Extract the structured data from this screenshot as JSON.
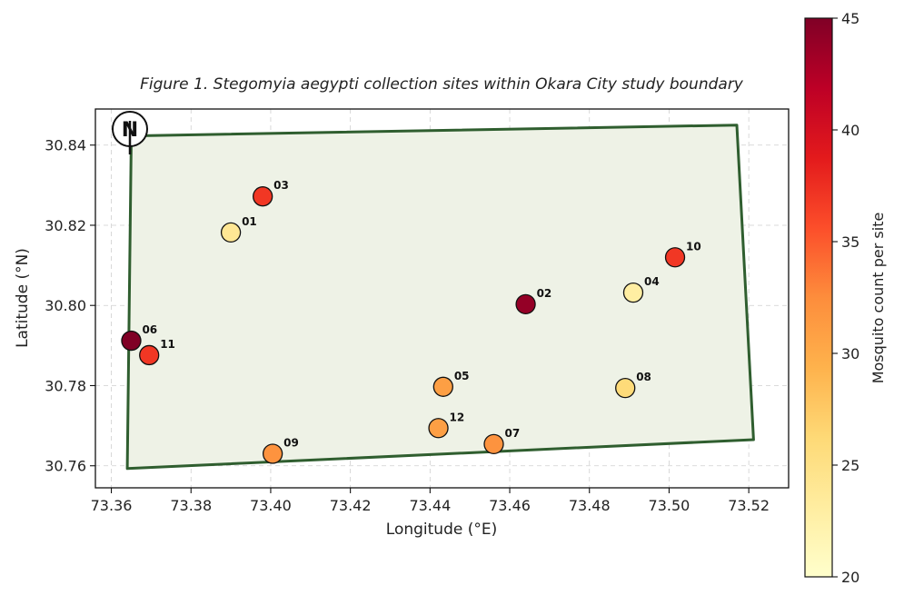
{
  "chart_data": {
    "type": "scatter",
    "title": "Figure 1. Stegomyia aegypti collection sites within Okara City study boundary",
    "xlabel": "Longitude (°E)",
    "ylabel": "Latitude (°N)",
    "xlim": [
      73.356,
      73.53
    ],
    "ylim": [
      30.7545,
      30.849
    ],
    "xticks": [
      "73.36",
      "73.38",
      "73.40",
      "73.42",
      "73.44",
      "73.46",
      "73.48",
      "73.50",
      "73.52"
    ],
    "yticks": [
      "30.76",
      "30.78",
      "30.80",
      "30.82",
      "30.84"
    ],
    "grid": true,
    "boundary_polygon": [
      {
        "lon": 73.365,
        "lat": 30.8423
      },
      {
        "lon": 73.517,
        "lat": 30.845
      },
      {
        "lon": 73.5212,
        "lat": 30.7665
      },
      {
        "lon": 73.364,
        "lat": 30.7593
      }
    ],
    "boundary_color": "#2f5e2f",
    "boundary_fill": "#eef2e6",
    "points": [
      {
        "label": "01",
        "lon": 73.39,
        "lat": 30.8182,
        "count": 24
      },
      {
        "label": "02",
        "lon": 73.464,
        "lat": 30.8003,
        "count": 44
      },
      {
        "label": "03",
        "lon": 73.398,
        "lat": 30.8272,
        "count": 37
      },
      {
        "label": "04",
        "lon": 73.491,
        "lat": 30.8032,
        "count": 23
      },
      {
        "label": "05",
        "lon": 73.4433,
        "lat": 30.7797,
        "count": 31
      },
      {
        "label": "06",
        "lon": 73.365,
        "lat": 30.7912,
        "count": 45
      },
      {
        "label": "07",
        "lon": 73.456,
        "lat": 30.7654,
        "count": 32
      },
      {
        "label": "08",
        "lon": 73.489,
        "lat": 30.7794,
        "count": 26
      },
      {
        "label": "09",
        "lon": 73.4005,
        "lat": 30.763,
        "count": 32
      },
      {
        "label": "10",
        "lon": 73.5015,
        "lat": 30.812,
        "count": 37
      },
      {
        "label": "11",
        "lon": 73.3695,
        "lat": 30.7876,
        "count": 37
      },
      {
        "label": "12",
        "lon": 73.4421,
        "lat": 30.7694,
        "count": 31
      }
    ],
    "colorbar": {
      "label": "Mosquito count per site",
      "min": 20,
      "max": 45,
      "ticks": [
        "20",
        "25",
        "30",
        "35",
        "40",
        "45"
      ],
      "colormap": "YlOrRd"
    },
    "north_arrow": "N"
  }
}
